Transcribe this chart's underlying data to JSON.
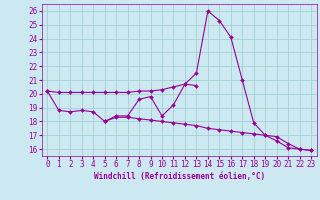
{
  "xlabel": "Windchill (Refroidissement éolien,°C)",
  "background_color": "#cce8f0",
  "line_color": "#990099",
  "x_values": [
    0,
    1,
    2,
    3,
    4,
    5,
    6,
    7,
    8,
    9,
    10,
    11,
    12,
    13,
    14,
    15,
    16,
    17,
    18,
    19,
    20,
    21,
    22,
    23
  ],
  "line1_y": [
    20.2,
    20.1,
    20.1,
    20.1,
    20.1,
    20.1,
    20.1,
    20.1,
    20.2,
    20.2,
    20.3,
    20.5,
    20.7,
    21.5,
    26.0,
    25.3,
    24.1,
    21.0,
    17.9,
    17.0,
    16.6,
    16.1,
    16.0,
    15.9
  ],
  "line2_y": [
    20.2,
    18.8,
    18.7,
    18.8,
    18.7,
    18.0,
    18.4,
    18.4,
    19.6,
    19.8,
    18.4,
    19.2,
    20.7,
    20.6,
    null,
    null,
    null,
    null,
    null,
    null,
    null,
    null,
    null,
    null
  ],
  "line3_y": [
    null,
    null,
    null,
    null,
    null,
    18.0,
    18.3,
    18.3,
    18.2,
    18.1,
    18.0,
    17.9,
    17.8,
    17.7,
    17.5,
    17.4,
    17.3,
    17.2,
    17.1,
    17.0,
    16.9,
    16.4,
    16.0,
    15.9
  ],
  "ylim": [
    15.5,
    26.5
  ],
  "yticks": [
    16,
    17,
    18,
    19,
    20,
    21,
    22,
    23,
    24,
    25,
    26
  ],
  "xticks": [
    0,
    1,
    2,
    3,
    4,
    5,
    6,
    7,
    8,
    9,
    10,
    11,
    12,
    13,
    14,
    15,
    16,
    17,
    18,
    19,
    20,
    21,
    22,
    23
  ],
  "grid_color": "#99cccc",
  "font_color": "#990099",
  "marker": "D",
  "markersize": 2,
  "linewidth": 0.8,
  "tick_fontsize": 5.5,
  "xlabel_fontsize": 5.5
}
